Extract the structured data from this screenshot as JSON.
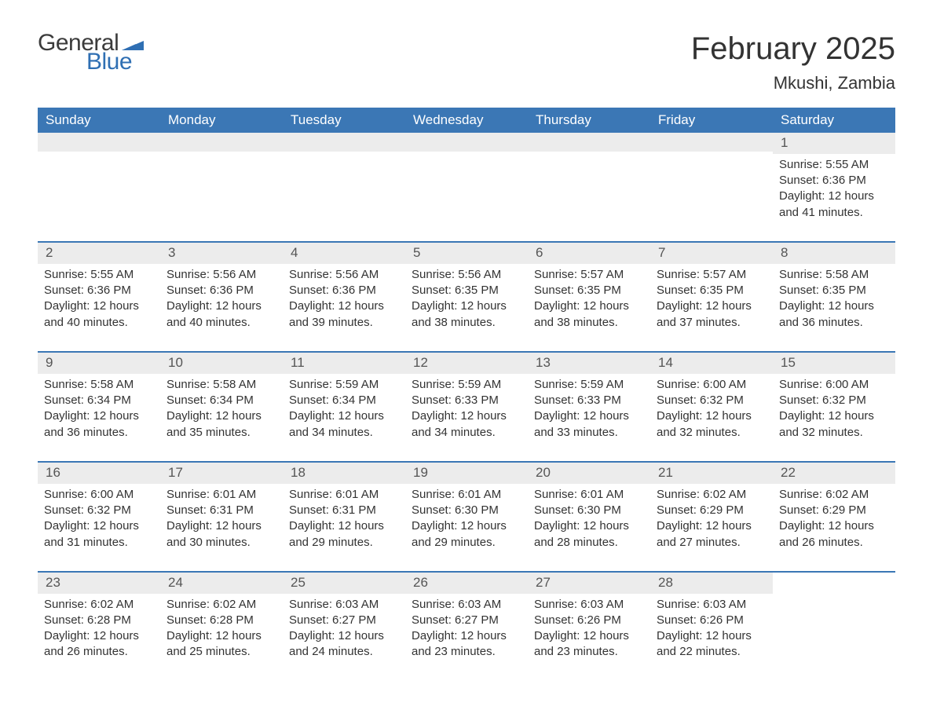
{
  "logo": {
    "text_general": "General",
    "text_blue": "Blue",
    "flag_color": "#2f6fb3"
  },
  "header": {
    "month_title": "February 2025",
    "location": "Mkushi, Zambia"
  },
  "colors": {
    "header_bg": "#3b77b5",
    "header_text": "#ffffff",
    "day_bar_bg": "#ececec",
    "border": "#3b77b5",
    "body_text": "#333333"
  },
  "days_of_week": [
    "Sunday",
    "Monday",
    "Tuesday",
    "Wednesday",
    "Thursday",
    "Friday",
    "Saturday"
  ],
  "weeks": [
    [
      {
        "empty": true
      },
      {
        "empty": true
      },
      {
        "empty": true
      },
      {
        "empty": true
      },
      {
        "empty": true
      },
      {
        "empty": true
      },
      {
        "num": "1",
        "sunrise": "Sunrise: 5:55 AM",
        "sunset": "Sunset: 6:36 PM",
        "day1": "Daylight: 12 hours",
        "day2": "and 41 minutes."
      }
    ],
    [
      {
        "num": "2",
        "sunrise": "Sunrise: 5:55 AM",
        "sunset": "Sunset: 6:36 PM",
        "day1": "Daylight: 12 hours",
        "day2": "and 40 minutes."
      },
      {
        "num": "3",
        "sunrise": "Sunrise: 5:56 AM",
        "sunset": "Sunset: 6:36 PM",
        "day1": "Daylight: 12 hours",
        "day2": "and 40 minutes."
      },
      {
        "num": "4",
        "sunrise": "Sunrise: 5:56 AM",
        "sunset": "Sunset: 6:36 PM",
        "day1": "Daylight: 12 hours",
        "day2": "and 39 minutes."
      },
      {
        "num": "5",
        "sunrise": "Sunrise: 5:56 AM",
        "sunset": "Sunset: 6:35 PM",
        "day1": "Daylight: 12 hours",
        "day2": "and 38 minutes."
      },
      {
        "num": "6",
        "sunrise": "Sunrise: 5:57 AM",
        "sunset": "Sunset: 6:35 PM",
        "day1": "Daylight: 12 hours",
        "day2": "and 38 minutes."
      },
      {
        "num": "7",
        "sunrise": "Sunrise: 5:57 AM",
        "sunset": "Sunset: 6:35 PM",
        "day1": "Daylight: 12 hours",
        "day2": "and 37 minutes."
      },
      {
        "num": "8",
        "sunrise": "Sunrise: 5:58 AM",
        "sunset": "Sunset: 6:35 PM",
        "day1": "Daylight: 12 hours",
        "day2": "and 36 minutes."
      }
    ],
    [
      {
        "num": "9",
        "sunrise": "Sunrise: 5:58 AM",
        "sunset": "Sunset: 6:34 PM",
        "day1": "Daylight: 12 hours",
        "day2": "and 36 minutes."
      },
      {
        "num": "10",
        "sunrise": "Sunrise: 5:58 AM",
        "sunset": "Sunset: 6:34 PM",
        "day1": "Daylight: 12 hours",
        "day2": "and 35 minutes."
      },
      {
        "num": "11",
        "sunrise": "Sunrise: 5:59 AM",
        "sunset": "Sunset: 6:34 PM",
        "day1": "Daylight: 12 hours",
        "day2": "and 34 minutes."
      },
      {
        "num": "12",
        "sunrise": "Sunrise: 5:59 AM",
        "sunset": "Sunset: 6:33 PM",
        "day1": "Daylight: 12 hours",
        "day2": "and 34 minutes."
      },
      {
        "num": "13",
        "sunrise": "Sunrise: 5:59 AM",
        "sunset": "Sunset: 6:33 PM",
        "day1": "Daylight: 12 hours",
        "day2": "and 33 minutes."
      },
      {
        "num": "14",
        "sunrise": "Sunrise: 6:00 AM",
        "sunset": "Sunset: 6:32 PM",
        "day1": "Daylight: 12 hours",
        "day2": "and 32 minutes."
      },
      {
        "num": "15",
        "sunrise": "Sunrise: 6:00 AM",
        "sunset": "Sunset: 6:32 PM",
        "day1": "Daylight: 12 hours",
        "day2": "and 32 minutes."
      }
    ],
    [
      {
        "num": "16",
        "sunrise": "Sunrise: 6:00 AM",
        "sunset": "Sunset: 6:32 PM",
        "day1": "Daylight: 12 hours",
        "day2": "and 31 minutes."
      },
      {
        "num": "17",
        "sunrise": "Sunrise: 6:01 AM",
        "sunset": "Sunset: 6:31 PM",
        "day1": "Daylight: 12 hours",
        "day2": "and 30 minutes."
      },
      {
        "num": "18",
        "sunrise": "Sunrise: 6:01 AM",
        "sunset": "Sunset: 6:31 PM",
        "day1": "Daylight: 12 hours",
        "day2": "and 29 minutes."
      },
      {
        "num": "19",
        "sunrise": "Sunrise: 6:01 AM",
        "sunset": "Sunset: 6:30 PM",
        "day1": "Daylight: 12 hours",
        "day2": "and 29 minutes."
      },
      {
        "num": "20",
        "sunrise": "Sunrise: 6:01 AM",
        "sunset": "Sunset: 6:30 PM",
        "day1": "Daylight: 12 hours",
        "day2": "and 28 minutes."
      },
      {
        "num": "21",
        "sunrise": "Sunrise: 6:02 AM",
        "sunset": "Sunset: 6:29 PM",
        "day1": "Daylight: 12 hours",
        "day2": "and 27 minutes."
      },
      {
        "num": "22",
        "sunrise": "Sunrise: 6:02 AM",
        "sunset": "Sunset: 6:29 PM",
        "day1": "Daylight: 12 hours",
        "day2": "and 26 minutes."
      }
    ],
    [
      {
        "num": "23",
        "sunrise": "Sunrise: 6:02 AM",
        "sunset": "Sunset: 6:28 PM",
        "day1": "Daylight: 12 hours",
        "day2": "and 26 minutes."
      },
      {
        "num": "24",
        "sunrise": "Sunrise: 6:02 AM",
        "sunset": "Sunset: 6:28 PM",
        "day1": "Daylight: 12 hours",
        "day2": "and 25 minutes."
      },
      {
        "num": "25",
        "sunrise": "Sunrise: 6:03 AM",
        "sunset": "Sunset: 6:27 PM",
        "day1": "Daylight: 12 hours",
        "day2": "and 24 minutes."
      },
      {
        "num": "26",
        "sunrise": "Sunrise: 6:03 AM",
        "sunset": "Sunset: 6:27 PM",
        "day1": "Daylight: 12 hours",
        "day2": "and 23 minutes."
      },
      {
        "num": "27",
        "sunrise": "Sunrise: 6:03 AM",
        "sunset": "Sunset: 6:26 PM",
        "day1": "Daylight: 12 hours",
        "day2": "and 23 minutes."
      },
      {
        "num": "28",
        "sunrise": "Sunrise: 6:03 AM",
        "sunset": "Sunset: 6:26 PM",
        "day1": "Daylight: 12 hours",
        "day2": "and 22 minutes."
      },
      {
        "empty": true,
        "noBar": true
      }
    ]
  ]
}
